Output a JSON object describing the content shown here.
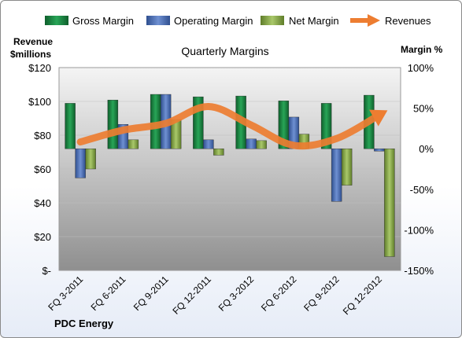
{
  "chart_data": {
    "type": "bar",
    "title": "Quarterly Margins",
    "company": "PDC Energy",
    "left_axis_label": [
      "Revenue",
      "$millions"
    ],
    "right_axis_label": "Margin %",
    "categories": [
      "FQ 3-2011",
      "FQ 6-2011",
      "FQ 9-2011",
      "FQ 12-2011",
      "FQ 3-2012",
      "FQ 6-2012",
      "FQ 9-2012",
      "FQ 12-2012"
    ],
    "left_ylim": [
      0,
      120
    ],
    "left_ticks": [
      0,
      20,
      40,
      60,
      80,
      100,
      120
    ],
    "left_tick_labels": [
      "$-",
      "$20",
      "$40",
      "$60",
      "$80",
      "$100",
      "$120"
    ],
    "right_ylim": [
      -150,
      100
    ],
    "right_ticks": [
      -150,
      -100,
      -50,
      0,
      50,
      100
    ],
    "right_tick_labels": [
      "-150%",
      "-100%",
      "-50%",
      "0%",
      "50%",
      "100%"
    ],
    "legend": [
      "Gross Margin",
      "Operating Margin",
      "Net Margin",
      "Revenues"
    ],
    "legend_position": "top",
    "series": [
      {
        "name": "Gross Margin",
        "axis": "right",
        "color": "#1e8c48",
        "values": [
          56,
          60,
          67,
          64,
          65,
          59,
          56,
          66
        ]
      },
      {
        "name": "Operating Margin",
        "axis": "right",
        "color": "#4f72b8",
        "values": [
          -36,
          30,
          67,
          11,
          12,
          39,
          -65,
          -3
        ]
      },
      {
        "name": "Net Margin",
        "axis": "right",
        "color": "#8fb24f",
        "values": [
          -25,
          11,
          36,
          -8,
          10,
          18,
          -45,
          -133
        ]
      },
      {
        "name": "Revenues",
        "axis": "left",
        "type": "line",
        "color": "#ed7d31",
        "values": [
          76,
          83,
          87,
          97,
          86,
          74,
          78,
          92
        ]
      }
    ]
  }
}
